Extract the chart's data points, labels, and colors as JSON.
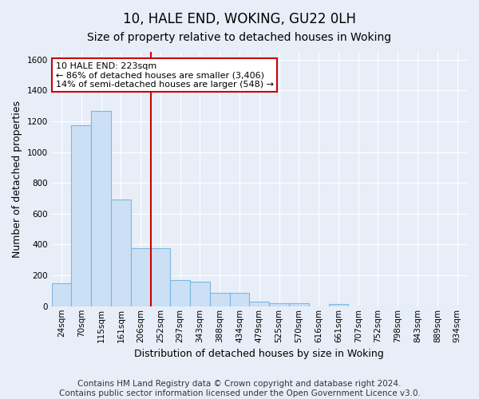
{
  "title": "10, HALE END, WOKING, GU22 0LH",
  "subtitle": "Size of property relative to detached houses in Woking",
  "xlabel": "Distribution of detached houses by size in Woking",
  "ylabel": "Number of detached properties",
  "categories": [
    "24sqm",
    "70sqm",
    "115sqm",
    "161sqm",
    "206sqm",
    "252sqm",
    "297sqm",
    "343sqm",
    "388sqm",
    "434sqm",
    "479sqm",
    "525sqm",
    "570sqm",
    "616sqm",
    "661sqm",
    "707sqm",
    "752sqm",
    "798sqm",
    "843sqm",
    "889sqm",
    "934sqm"
  ],
  "values": [
    150,
    1175,
    1265,
    690,
    375,
    375,
    170,
    160,
    85,
    85,
    30,
    20,
    20,
    0,
    15,
    0,
    0,
    0,
    0,
    0,
    0
  ],
  "bar_color": "#cce0f5",
  "bar_edge_color": "#7ab8e0",
  "red_line_index": 4,
  "annotation_text": "10 HALE END: 223sqm\n← 86% of detached houses are smaller (3,406)\n14% of semi-detached houses are larger (548) →",
  "annotation_box_color": "#ffffff",
  "annotation_box_edge": "#cc0000",
  "red_line_color": "#cc0000",
  "footer": "Contains HM Land Registry data © Crown copyright and database right 2024.\nContains public sector information licensed under the Open Government Licence v3.0.",
  "ylim": [
    0,
    1650
  ],
  "background_color": "#e8eef8",
  "grid_color": "#ffffff",
  "title_fontsize": 12,
  "subtitle_fontsize": 10,
  "xlabel_fontsize": 9,
  "ylabel_fontsize": 9,
  "tick_fontsize": 7.5,
  "footer_fontsize": 7.5
}
